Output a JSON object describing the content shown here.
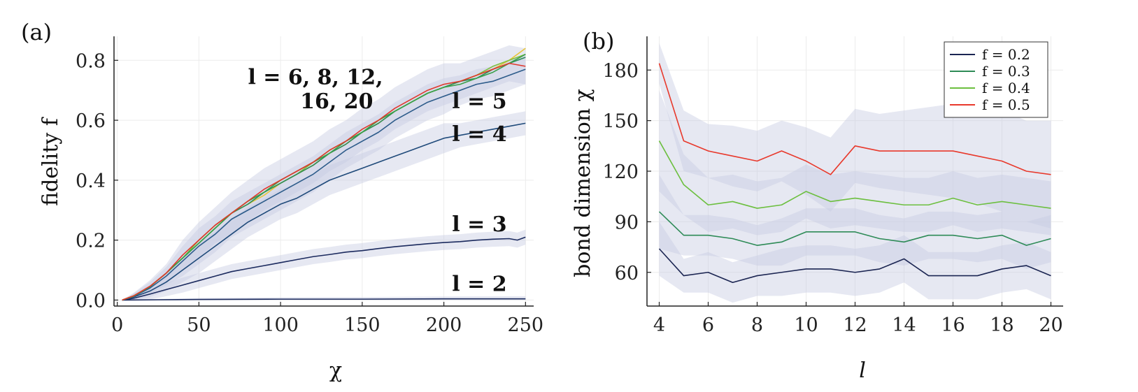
{
  "chart_data": [
    {
      "panel": "(a)",
      "type": "line",
      "xlabel": "χ",
      "ylabel": "fidelity f",
      "xlim": [
        -2,
        255
      ],
      "ylim": [
        -0.02,
        0.88
      ],
      "xticks": [
        0,
        50,
        100,
        150,
        200,
        250
      ],
      "xtick_labels": [
        "0",
        "50",
        "100",
        "150",
        "200",
        "250"
      ],
      "yticks": [
        0.0,
        0.2,
        0.4,
        0.6,
        0.8
      ],
      "ytick_labels": [
        "0.0",
        "0.2",
        "0.4",
        "0.6",
        "0.8"
      ],
      "annotations": [
        {
          "text": "l = 6, 8, 12,",
          "x": 80,
          "y": 0.72
        },
        {
          "text": "16, 20",
          "x": 112,
          "y": 0.64
        },
        {
          "text": "l = 5",
          "x": 205,
          "y": 0.64
        },
        {
          "text": "l = 4",
          "x": 205,
          "y": 0.53
        },
        {
          "text": "l = 3",
          "x": 205,
          "y": 0.23
        },
        {
          "text": "l = 2",
          "x": 205,
          "y": 0.03
        }
      ],
      "series": [
        {
          "name": "l = 2",
          "color": "#1b2a5e",
          "x": [
            3,
            25,
            50,
            100,
            150,
            200,
            250
          ],
          "y": [
            0.0,
            0.001,
            0.002,
            0.003,
            0.003,
            0.004,
            0.004
          ],
          "band": [
            0.0,
            0.003,
            0.005,
            0.006,
            0.007,
            0.008,
            0.009
          ]
        },
        {
          "name": "l = 3",
          "color": "#1b2a5e",
          "x": [
            3,
            10,
            20,
            30,
            40,
            50,
            60,
            70,
            80,
            90,
            100,
            110,
            120,
            130,
            140,
            150,
            160,
            170,
            180,
            190,
            200,
            210,
            220,
            230,
            240,
            245,
            250
          ],
          "y": [
            0.0,
            0.006,
            0.02,
            0.035,
            0.05,
            0.065,
            0.08,
            0.095,
            0.105,
            0.115,
            0.125,
            0.135,
            0.145,
            0.152,
            0.16,
            0.165,
            0.172,
            0.178,
            0.183,
            0.188,
            0.192,
            0.195,
            0.2,
            0.203,
            0.205,
            0.2,
            0.21
          ],
          "band": [
            0.0,
            0.01,
            0.018,
            0.022,
            0.025,
            0.025,
            0.025,
            0.025,
            0.025,
            0.025,
            0.025,
            0.025,
            0.025,
            0.025,
            0.025,
            0.025,
            0.025,
            0.025,
            0.025,
            0.025,
            0.025,
            0.025,
            0.025,
            0.025,
            0.025,
            0.025,
            0.025
          ]
        },
        {
          "name": "l = 4",
          "color": "#1f4a7a",
          "x": [
            3,
            10,
            20,
            30,
            40,
            50,
            60,
            70,
            80,
            90,
            100,
            110,
            120,
            130,
            140,
            150,
            160,
            170,
            180,
            190,
            200,
            210,
            220,
            230,
            240,
            250
          ],
          "y": [
            0.0,
            0.01,
            0.03,
            0.06,
            0.1,
            0.14,
            0.18,
            0.22,
            0.26,
            0.29,
            0.32,
            0.34,
            0.37,
            0.4,
            0.42,
            0.44,
            0.46,
            0.48,
            0.5,
            0.52,
            0.54,
            0.55,
            0.56,
            0.57,
            0.58,
            0.59
          ],
          "band": [
            0.0,
            0.01,
            0.02,
            0.03,
            0.04,
            0.05,
            0.05,
            0.05,
            0.05,
            0.05,
            0.05,
            0.05,
            0.05,
            0.05,
            0.05,
            0.05,
            0.05,
            0.05,
            0.05,
            0.05,
            0.05,
            0.04,
            0.04,
            0.04,
            0.04,
            0.04
          ]
        },
        {
          "name": "l = 5",
          "color": "#2c5b8a",
          "x": [
            3,
            10,
            20,
            30,
            40,
            50,
            60,
            70,
            80,
            90,
            100,
            110,
            120,
            130,
            140,
            150,
            160,
            170,
            180,
            190,
            200,
            210,
            220,
            230,
            240,
            250
          ],
          "y": [
            0.0,
            0.012,
            0.04,
            0.08,
            0.13,
            0.18,
            0.22,
            0.27,
            0.3,
            0.33,
            0.36,
            0.39,
            0.42,
            0.46,
            0.5,
            0.53,
            0.56,
            0.6,
            0.63,
            0.66,
            0.68,
            0.7,
            0.72,
            0.73,
            0.75,
            0.77
          ],
          "band": [
            0.0,
            0.01,
            0.02,
            0.03,
            0.05,
            0.06,
            0.06,
            0.06,
            0.06,
            0.06,
            0.06,
            0.06,
            0.06,
            0.06,
            0.06,
            0.06,
            0.06,
            0.06,
            0.06,
            0.06,
            0.06,
            0.05,
            0.05,
            0.05,
            0.05,
            0.05
          ]
        },
        {
          "name": "l = 6",
          "color": "#e8c63a",
          "x": [
            3,
            10,
            20,
            30,
            40,
            50,
            60,
            70,
            80,
            90,
            100,
            110,
            120,
            130,
            140,
            150,
            160,
            170,
            180,
            190,
            200,
            210,
            220,
            230,
            240,
            250
          ],
          "y": [
            0.0,
            0.014,
            0.045,
            0.09,
            0.14,
            0.19,
            0.24,
            0.29,
            0.32,
            0.35,
            0.39,
            0.42,
            0.45,
            0.49,
            0.52,
            0.56,
            0.59,
            0.63,
            0.66,
            0.69,
            0.71,
            0.73,
            0.75,
            0.77,
            0.8,
            0.84
          ],
          "band": []
        },
        {
          "name": "l = 8",
          "color": "#7fbf3f",
          "x": [
            3,
            10,
            20,
            30,
            40,
            50,
            60,
            70,
            80,
            90,
            100,
            110,
            120,
            130,
            140,
            150,
            160,
            170,
            180,
            190,
            200,
            210,
            220,
            230,
            240,
            250
          ],
          "y": [
            0.0,
            0.014,
            0.045,
            0.09,
            0.14,
            0.2,
            0.25,
            0.29,
            0.33,
            0.36,
            0.39,
            0.42,
            0.46,
            0.5,
            0.53,
            0.56,
            0.6,
            0.63,
            0.66,
            0.69,
            0.71,
            0.73,
            0.75,
            0.78,
            0.8,
            0.82
          ],
          "band": []
        },
        {
          "name": "l = 12",
          "color": "#2e8b57",
          "x": [
            3,
            10,
            20,
            30,
            40,
            50,
            60,
            70,
            80,
            90,
            100,
            110,
            120,
            130,
            140,
            150,
            160,
            170,
            180,
            190,
            200,
            210,
            220,
            230,
            240,
            250
          ],
          "y": [
            0.0,
            0.013,
            0.044,
            0.09,
            0.14,
            0.19,
            0.24,
            0.29,
            0.32,
            0.36,
            0.39,
            0.42,
            0.45,
            0.49,
            0.52,
            0.56,
            0.59,
            0.63,
            0.66,
            0.69,
            0.71,
            0.73,
            0.74,
            0.77,
            0.79,
            0.81
          ],
          "band": []
        },
        {
          "name": "l = 16",
          "color": "#3aa04a",
          "x": [
            3,
            10,
            20,
            30,
            40,
            50,
            60,
            70,
            80,
            90,
            100,
            110,
            120,
            130,
            140,
            150,
            160,
            170,
            180,
            190,
            200,
            210,
            220,
            230,
            240,
            250
          ],
          "y": [
            0.0,
            0.013,
            0.045,
            0.09,
            0.14,
            0.19,
            0.24,
            0.29,
            0.33,
            0.36,
            0.4,
            0.43,
            0.46,
            0.49,
            0.53,
            0.56,
            0.6,
            0.63,
            0.66,
            0.69,
            0.71,
            0.72,
            0.74,
            0.76,
            0.79,
            0.82
          ],
          "band": []
        },
        {
          "name": "l = 20",
          "color": "#e0382b",
          "x": [
            3,
            10,
            20,
            30,
            40,
            50,
            60,
            70,
            80,
            90,
            100,
            110,
            120,
            130,
            140,
            150,
            160,
            170,
            180,
            190,
            200,
            210,
            220,
            230,
            240,
            250
          ],
          "y": [
            0.0,
            0.014,
            0.046,
            0.09,
            0.15,
            0.2,
            0.25,
            0.29,
            0.33,
            0.37,
            0.4,
            0.43,
            0.46,
            0.5,
            0.53,
            0.57,
            0.6,
            0.64,
            0.67,
            0.7,
            0.72,
            0.73,
            0.75,
            0.77,
            0.79,
            0.78
          ],
          "band": [
            0.0,
            0.01,
            0.02,
            0.03,
            0.05,
            0.06,
            0.06,
            0.07,
            0.07,
            0.07,
            0.07,
            0.07,
            0.07,
            0.07,
            0.07,
            0.07,
            0.07,
            0.07,
            0.07,
            0.07,
            0.07,
            0.06,
            0.06,
            0.06,
            0.06,
            0.06
          ]
        }
      ]
    },
    {
      "panel": "(b)",
      "type": "line",
      "xlabel": "l",
      "ylabel": "bond dimension χ",
      "xlim": [
        3.5,
        20.5
      ],
      "ylim": [
        40,
        200
      ],
      "xticks": [
        4,
        6,
        8,
        10,
        12,
        14,
        16,
        18,
        20
      ],
      "xtick_labels": [
        "4",
        "6",
        "8",
        "10",
        "12",
        "14",
        "16",
        "18",
        "20"
      ],
      "yticks": [
        60,
        90,
        120,
        150,
        180
      ],
      "ytick_labels": [
        "60",
        "90",
        "120",
        "150",
        "180"
      ],
      "x": [
        4,
        5,
        6,
        7,
        8,
        9,
        10,
        11,
        12,
        13,
        14,
        15,
        16,
        17,
        18,
        19,
        20
      ],
      "legend": {
        "placement": "top-right"
      },
      "series": [
        {
          "name": "f = 0.2",
          "color": "#1b2552",
          "values": [
            74,
            58,
            60,
            54,
            58,
            60,
            62,
            62,
            60,
            62,
            68,
            58,
            58,
            58,
            62,
            64,
            58
          ],
          "band": [
            16,
            10,
            12,
            12,
            12,
            14,
            14,
            14,
            14,
            14,
            14,
            14,
            14,
            14,
            14,
            14,
            14
          ]
        },
        {
          "name": "f = 0.3",
          "color": "#2e8b57",
          "values": [
            96,
            82,
            82,
            80,
            76,
            78,
            84,
            84,
            84,
            80,
            78,
            82,
            82,
            80,
            82,
            76,
            80
          ],
          "band": [
            22,
            12,
            12,
            12,
            12,
            14,
            14,
            14,
            14,
            14,
            14,
            14,
            14,
            14,
            14,
            14,
            14
          ]
        },
        {
          "name": "f = 0.4",
          "color": "#6cbf3f",
          "values": [
            138,
            112,
            100,
            102,
            98,
            100,
            108,
            102,
            104,
            102,
            100,
            100,
            104,
            100,
            102,
            100,
            98
          ],
          "band": [
            30,
            18,
            16,
            16,
            16,
            16,
            16,
            16,
            16,
            16,
            16,
            16,
            16,
            16,
            16,
            16,
            16
          ]
        },
        {
          "name": "f = 0.5",
          "color": "#e8392c",
          "values": [
            184,
            138,
            132,
            129,
            126,
            132,
            126,
            118,
            135,
            132,
            132,
            132,
            132,
            129,
            126,
            120,
            118
          ],
          "band": [
            12,
            18,
            16,
            18,
            18,
            18,
            20,
            22,
            22,
            22,
            24,
            26,
            28,
            28,
            30,
            30,
            32
          ]
        }
      ]
    }
  ]
}
